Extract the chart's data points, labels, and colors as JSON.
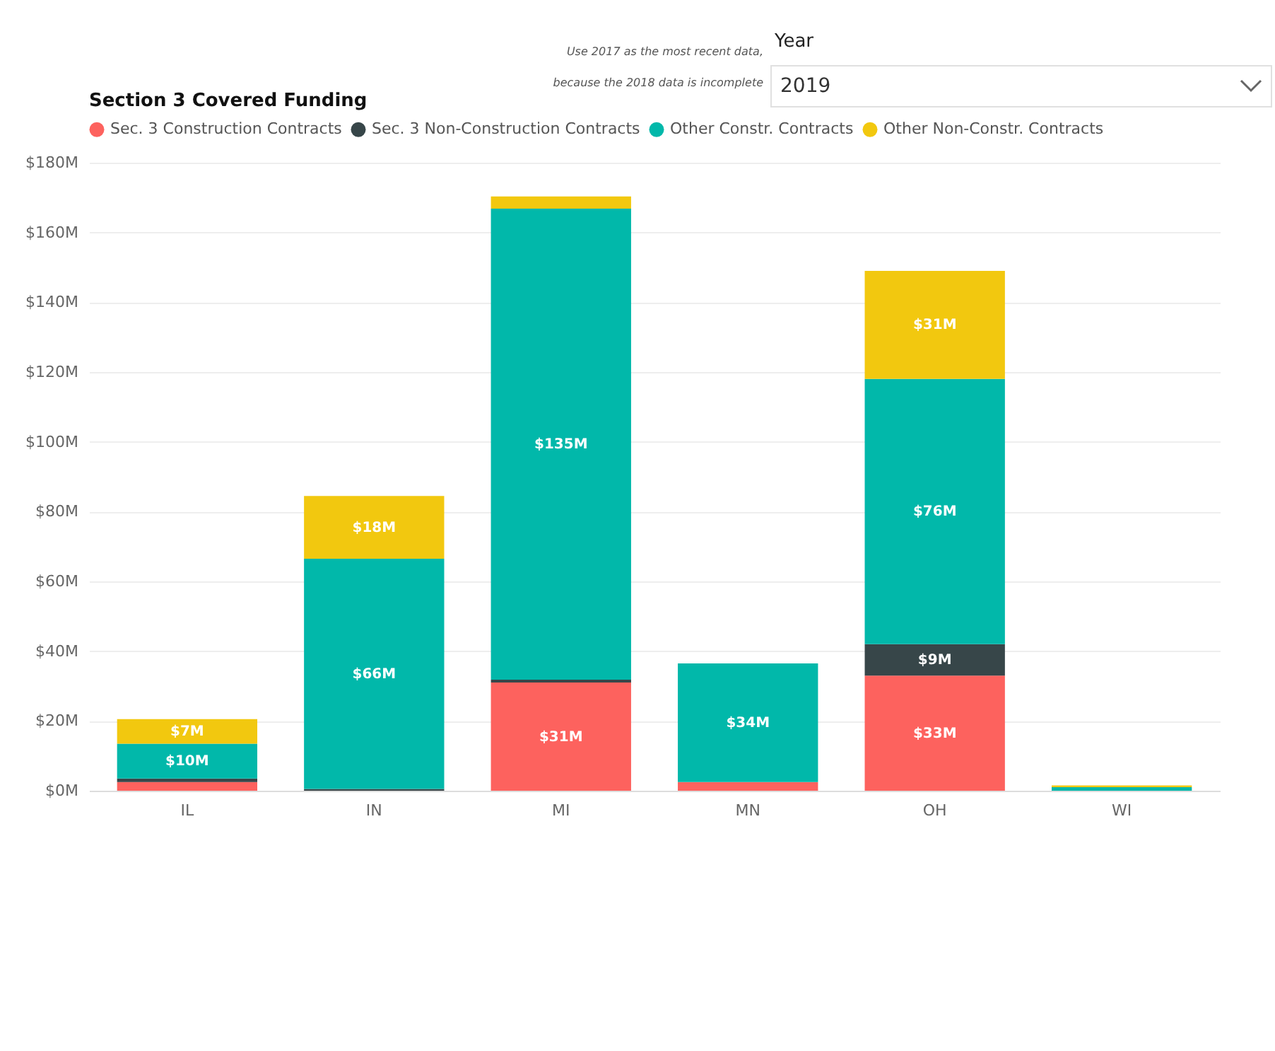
{
  "chart_data": {
    "type": "bar",
    "title": "Section 3 Covered Funding",
    "stacked": true,
    "legend": "top left",
    "grid": "y",
    "data_labels": false,
    "annotations": [
      "Use 2017 as the most recent data, because the 2018 data is incomplete",
      "Year",
      "2019"
    ],
    "categories": [
      "IL",
      "IN",
      "MI",
      "MN",
      "OH",
      "WI"
    ],
    "ylim": [
      0,
      180
    ],
    "yticks": [
      {
        "value": 0,
        "label": "$0M"
      },
      {
        "value": 20,
        "label": "$20M"
      },
      {
        "value": 40,
        "label": "$40M"
      },
      {
        "value": 60,
        "label": "$60M"
      },
      {
        "value": 80,
        "label": "$80M"
      },
      {
        "value": 100,
        "label": "$100M"
      },
      {
        "value": 120,
        "label": "$120M"
      },
      {
        "value": 140,
        "label": "$140M"
      },
      {
        "value": 160,
        "label": "$160M"
      },
      {
        "value": 180,
        "label": "$180M"
      }
    ],
    "series": [
      {
        "name": "Sec. 3 Construction Contracts",
        "color": "#fd625e",
        "values": [
          2.5,
          null,
          31,
          2.5,
          33,
          null
        ],
        "value_labels": [
          null,
          null,
          "$31M",
          null,
          "$33M",
          null
        ]
      },
      {
        "name": "Sec. 3 Non-Construction Contracts",
        "color": "#374649",
        "values": [
          1,
          0.5,
          0.8,
          null,
          9,
          null
        ],
        "value_labels": [
          null,
          null,
          null,
          null,
          "$9M",
          null
        ]
      },
      {
        "name": "Other Constr. Contracts",
        "color": "#01b8aa",
        "values": [
          10,
          66,
          135,
          34,
          76,
          1
        ],
        "value_labels": [
          "$10M",
          "$66M",
          "$135M",
          "$34M",
          "$76M",
          null
        ]
      },
      {
        "name": "Other Non-Constr. Contracts",
        "color": "#f2c80f",
        "values": [
          7,
          18,
          3.5,
          null,
          31,
          0.5
        ],
        "value_labels": [
          "$7M",
          "$18M",
          null,
          null,
          "$31M",
          null
        ]
      }
    ]
  }
}
